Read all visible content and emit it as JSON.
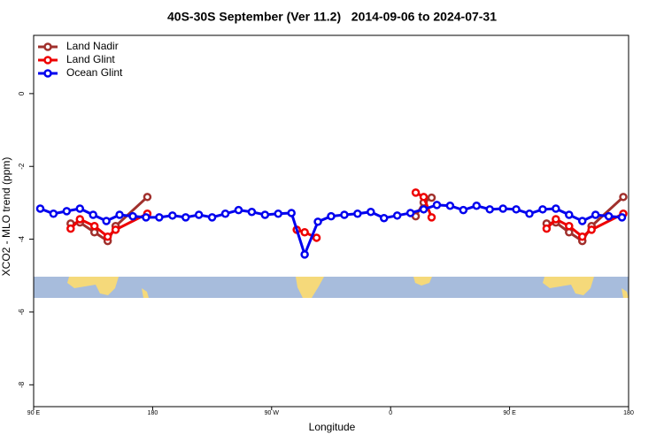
{
  "chart_data": {
    "type": "line",
    "title": "40S-30S September (Ver 11.2)   2014-09-06 to 2024-07-31",
    "x_label": "Longitude",
    "y_label": "XCO2 - MLO trend (ppm)",
    "xlim": [
      90,
      540
    ],
    "xticks": [
      {
        "value": 90,
        "label": "90 E"
      },
      {
        "value": 180,
        "label": "180"
      },
      {
        "value": 270,
        "label": "90 W"
      },
      {
        "value": 360,
        "label": "0"
      },
      {
        "value": 450,
        "label": "90 E"
      },
      {
        "value": 540,
        "label": "180"
      }
    ],
    "ylim": [
      -8.6,
      1.6
    ],
    "yticks": [
      0,
      -2,
      -4,
      -6,
      -8
    ],
    "legend_position": "top-left",
    "series": [
      {
        "name": "Land Nadir",
        "color": "#a0302c",
        "x": [
          118,
          125,
          136,
          146,
          152,
          176,
          null,
          379,
          385,
          391,
          null,
          478,
          485,
          495,
          505,
          512,
          536
        ],
        "values": [
          -3.57,
          -3.54,
          -3.81,
          -4.05,
          -3.64,
          -2.84,
          null,
          -3.37,
          -2.99,
          -2.86,
          null,
          -3.57,
          -3.54,
          -3.81,
          -4.05,
          -3.64,
          -2.84
        ]
      },
      {
        "name": "Land Glint",
        "color": "#ee0000",
        "x": [
          118,
          125,
          136,
          146,
          152,
          176,
          null,
          289,
          295,
          304,
          null,
          379,
          385,
          391,
          null,
          478,
          485,
          495,
          505,
          512,
          536
        ],
        "values": [
          -3.71,
          -3.45,
          -3.64,
          -3.93,
          -3.74,
          -3.3,
          null,
          -3.74,
          -3.81,
          -3.96,
          null,
          -2.72,
          -2.84,
          -3.4,
          null,
          -3.71,
          -3.45,
          -3.64,
          -3.93,
          -3.74,
          -3.3
        ]
      },
      {
        "name": "Ocean Glint",
        "color": "#0000ee",
        "x": [
          95,
          105,
          115,
          125,
          135,
          145,
          155,
          165,
          175,
          185,
          195,
          205,
          215,
          225,
          235,
          245,
          255,
          265,
          275,
          285,
          295,
          305,
          315,
          325,
          335,
          345,
          355,
          365,
          375,
          385,
          395,
          405,
          415,
          425,
          435,
          445,
          455,
          465,
          475,
          485,
          495,
          505,
          515,
          525,
          535
        ],
        "values": [
          -3.16,
          -3.3,
          -3.23,
          -3.16,
          -3.33,
          -3.5,
          -3.33,
          -3.37,
          -3.4,
          -3.4,
          -3.35,
          -3.4,
          -3.33,
          -3.4,
          -3.3,
          -3.2,
          -3.25,
          -3.33,
          -3.3,
          -3.28,
          -4.42,
          -3.52,
          -3.37,
          -3.33,
          -3.3,
          -3.25,
          -3.42,
          -3.35,
          -3.28,
          -3.18,
          -3.06,
          -3.08,
          -3.2,
          -3.08,
          -3.18,
          -3.16,
          -3.18,
          -3.3,
          -3.18,
          -3.16,
          -3.33,
          -3.5,
          -3.33,
          -3.37,
          -3.4
        ]
      }
    ]
  }
}
